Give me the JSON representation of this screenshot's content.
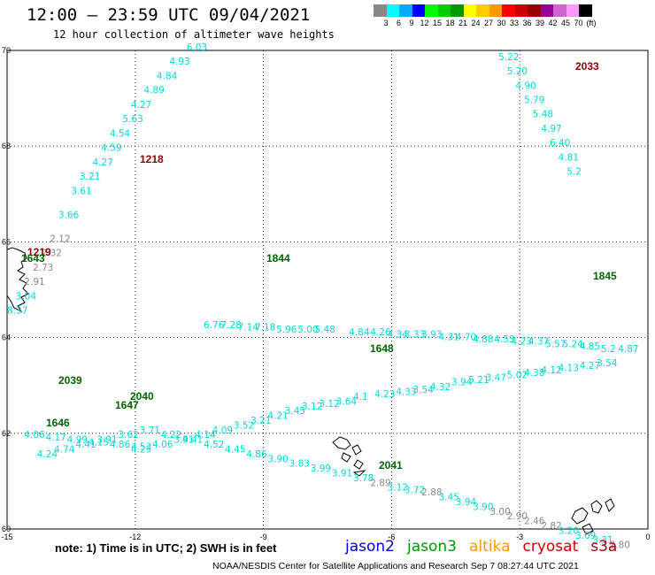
{
  "header": {
    "title": "12:00 – 23:59 UTC 09/04/2021",
    "subtitle": "12 hour collection of altimeter wave heights"
  },
  "color_scale": {
    "swatches": [
      "#888888",
      "#00ffff",
      "#00aaff",
      "#0000ff",
      "#00ff00",
      "#00cc00",
      "#009900",
      "#ffff00",
      "#ffcc00",
      "#ff9900",
      "#ff0000",
      "#cc0000",
      "#990000",
      "#990099",
      "#cc66cc",
      "#ff99ff",
      "#000000"
    ],
    "labels": [
      "3",
      "6",
      "9",
      "12",
      "15",
      "18",
      "21",
      "24",
      "27",
      "30",
      "33",
      "36",
      "39",
      "42",
      "45",
      "70",
      "(ft)"
    ]
  },
  "axes": {
    "lon_ticks": [
      "-15",
      "-12",
      "-9",
      "-6",
      "-3",
      "0"
    ],
    "lat_ticks": [
      "70",
      "68",
      "66",
      "64",
      "62",
      "60"
    ]
  },
  "tracks": [
    {
      "color": "#00d8d8",
      "points": [
        [
          -10.8,
          70.0,
          "6.03"
        ],
        [
          -11.2,
          69.7,
          "4.93"
        ],
        [
          -11.5,
          69.4,
          "4.84"
        ],
        [
          -11.8,
          69.1,
          "4.89"
        ],
        [
          -12.1,
          68.8,
          "4.27"
        ],
        [
          -12.3,
          68.5,
          "5.63"
        ],
        [
          -12.6,
          68.2,
          "4.54"
        ],
        [
          -12.8,
          67.9,
          "4.59"
        ],
        [
          -13.0,
          67.6,
          "4.27"
        ],
        [
          -13.3,
          67.3,
          "3.21"
        ],
        [
          -13.5,
          67.0,
          "3.61"
        ],
        [
          -13.8,
          66.5,
          "3.66"
        ]
      ]
    },
    {
      "color": "#888888",
      "points": [
        [
          -14.0,
          66.0,
          "2.12"
        ],
        [
          -14.2,
          65.7,
          "2.32"
        ],
        [
          -14.4,
          65.4,
          "2.73"
        ],
        [
          -14.6,
          65.1,
          "2.91"
        ]
      ]
    },
    {
      "color": "#00d8d8",
      "points": [
        [
          -14.8,
          64.8,
          "3.04"
        ],
        [
          -15.0,
          64.5,
          "8.37"
        ]
      ]
    },
    {
      "color": "#00d8d8",
      "points": [
        [
          -10.4,
          64.2,
          "6.76"
        ],
        [
          -10.0,
          64.2,
          "7.28"
        ],
        [
          -9.6,
          64.15,
          "7.14"
        ],
        [
          -9.2,
          64.15,
          "7.18"
        ],
        [
          -8.7,
          64.1,
          "5.96"
        ],
        [
          -8.2,
          64.1,
          "5.00"
        ],
        [
          -7.8,
          64.1,
          "5.48"
        ],
        [
          -7.0,
          64.05,
          "4.84"
        ],
        [
          -6.5,
          64.05,
          "4.26"
        ],
        [
          -6.1,
          64.0,
          "4.34"
        ],
        [
          -5.7,
          64.0,
          "3.33"
        ],
        [
          -5.3,
          64.0,
          "3.93"
        ],
        [
          -4.9,
          63.95,
          "4.31"
        ],
        [
          -4.5,
          63.95,
          "4.70"
        ],
        [
          -4.1,
          63.9,
          "4.88"
        ],
        [
          -3.6,
          63.9,
          "4.53"
        ],
        [
          -3.2,
          63.85,
          "4.23"
        ],
        [
          -2.8,
          63.85,
          "4.37"
        ],
        [
          -2.4,
          63.8,
          "5.57"
        ],
        [
          -2.0,
          63.8,
          "5.24"
        ],
        [
          -1.6,
          63.75,
          "4.85"
        ],
        [
          -1.1,
          63.7,
          "5.2"
        ],
        [
          -0.7,
          63.7,
          "4.87"
        ]
      ]
    },
    {
      "color": "#00d8d8",
      "points": [
        [
          -12.1,
          61.6,
          "4.25"
        ],
        [
          -11.6,
          61.7,
          "4.06"
        ],
        [
          -11.1,
          61.8,
          "3.91"
        ],
        [
          -10.6,
          61.9,
          "4.14"
        ],
        [
          -10.2,
          62.0,
          "4.09"
        ],
        [
          -9.7,
          62.1,
          "3.52"
        ],
        [
          -9.3,
          62.2,
          "3.21"
        ],
        [
          -8.9,
          62.3,
          "4.21"
        ],
        [
          -8.5,
          62.4,
          "3.45"
        ],
        [
          -8.1,
          62.5,
          "3.12"
        ],
        [
          -7.7,
          62.55,
          "3.12"
        ],
        [
          -7.3,
          62.6,
          "3.64"
        ],
        [
          -6.9,
          62.7,
          "4.1"
        ],
        [
          -6.4,
          62.75,
          "4.23"
        ],
        [
          -5.9,
          62.8,
          "4.33"
        ],
        [
          -5.5,
          62.85,
          "3.54"
        ],
        [
          -5.1,
          62.9,
          "4.32"
        ],
        [
          -4.6,
          63.0,
          "3.94"
        ],
        [
          -4.2,
          63.05,
          "5.21"
        ],
        [
          -3.8,
          63.1,
          "3.47"
        ],
        [
          -3.3,
          63.15,
          "5.02"
        ],
        [
          -2.9,
          63.2,
          "4.38"
        ],
        [
          -2.5,
          63.25,
          "4.12"
        ],
        [
          -2.1,
          63.3,
          "4.13"
        ],
        [
          -1.6,
          63.35,
          "4.27"
        ],
        [
          -1.2,
          63.4,
          "3.54"
        ]
      ]
    },
    {
      "color": "#00d8d8",
      "points": [
        [
          -14.3,
          61.5,
          "4.24"
        ],
        [
          -13.9,
          61.6,
          "4.74"
        ],
        [
          -13.4,
          61.7,
          "4.41"
        ],
        [
          -12.9,
          61.8,
          "3.91"
        ],
        [
          -12.4,
          61.9,
          "3.62"
        ],
        [
          -11.9,
          62.0,
          "3.71"
        ],
        [
          -11.4,
          61.9,
          "4.22"
        ],
        [
          -10.9,
          61.8,
          "4.41"
        ],
        [
          -10.4,
          61.7,
          "4.52"
        ],
        [
          -9.9,
          61.6,
          "4.45"
        ],
        [
          -9.4,
          61.5,
          "4.86"
        ],
        [
          -8.9,
          61.4,
          "3.90"
        ],
        [
          -8.4,
          61.3,
          "3.83"
        ],
        [
          -7.9,
          61.2,
          "3.99"
        ],
        [
          -7.4,
          61.1,
          "3.91"
        ],
        [
          -6.9,
          61.0,
          "3.78"
        ]
      ]
    },
    {
      "color": "#888888",
      "points": [
        [
          -6.5,
          60.9,
          "2.89"
        ]
      ]
    },
    {
      "color": "#00d8d8",
      "points": [
        [
          -6.1,
          60.8,
          "3.12"
        ],
        [
          -5.7,
          60.75,
          "3.72"
        ]
      ]
    },
    {
      "color": "#888888",
      "points": [
        [
          -5.3,
          60.7,
          "2.88"
        ]
      ]
    },
    {
      "color": "#00d8d8",
      "points": [
        [
          -4.9,
          60.6,
          "3.45"
        ],
        [
          -4.5,
          60.5,
          "3.94"
        ],
        [
          -4.1,
          60.4,
          "3.90"
        ]
      ]
    },
    {
      "color": "#888888",
      "points": [
        [
          -3.7,
          60.3,
          "3.00"
        ],
        [
          -3.3,
          60.2,
          "2.90"
        ],
        [
          -2.9,
          60.1,
          "2.46"
        ],
        [
          -2.5,
          60.0,
          "2.82"
        ]
      ]
    },
    {
      "color": "#00d8d8",
      "points": [
        [
          -2.1,
          59.9,
          "3.20"
        ],
        [
          -1.7,
          59.8,
          "3.09"
        ],
        [
          -1.3,
          59.7,
          "3.31"
        ]
      ]
    },
    {
      "color": "#888888",
      "points": [
        [
          -0.9,
          59.6,
          "2.80"
        ]
      ]
    },
    {
      "color": "#00d8d8",
      "points": [
        [
          -14.6,
          61.9,
          "4.06"
        ],
        [
          -14.1,
          61.85,
          "4.17"
        ],
        [
          -13.6,
          61.8,
          "4.99"
        ],
        [
          -13.1,
          61.75,
          "4.15"
        ],
        [
          -12.6,
          61.7,
          "4.86"
        ],
        [
          -12.1,
          61.65,
          "4.53"
        ]
      ]
    },
    {
      "color": "#00d8d8",
      "points": [
        [
          -3.5,
          69.8,
          "5.22"
        ],
        [
          -3.3,
          69.5,
          "5.20"
        ],
        [
          -3.1,
          69.2,
          "4.90"
        ],
        [
          -2.9,
          68.9,
          "5.79"
        ],
        [
          -2.7,
          68.6,
          "5.48"
        ],
        [
          -2.5,
          68.3,
          "4.97"
        ],
        [
          -2.3,
          68.0,
          "6.40"
        ],
        [
          -2.1,
          67.7,
          "4.81"
        ],
        [
          -1.9,
          67.4,
          "5.2"
        ]
      ]
    }
  ],
  "time_marks": [
    {
      "text": "1218",
      "color": "#8b0000"
    },
    {
      "text": "1219",
      "color": "#8b0000"
    },
    {
      "text": "1643",
      "color": "#006400"
    },
    {
      "text": "1844",
      "color": "#006400"
    },
    {
      "text": "1845",
      "color": "#006400"
    },
    {
      "text": "1648",
      "color": "#006400"
    },
    {
      "text": "2039",
      "color": "#006400"
    },
    {
      "text": "2040",
      "color": "#006400"
    },
    {
      "text": "1647",
      "color": "#006400"
    },
    {
      "text": "1646",
      "color": "#006400"
    },
    {
      "text": "2041",
      "color": "#006400"
    },
    {
      "text": "2033",
      "color": "#8b0000"
    }
  ],
  "footer": {
    "note": "note:  1) Time is in UTC;  2) SWH is in feet",
    "legend": [
      {
        "text": "jason2",
        "color": "#0000dd"
      },
      {
        "text": "jason3",
        "color": "#009900"
      },
      {
        "text": "altika",
        "color": "#ff9900"
      },
      {
        "text": "cryosat",
        "color": "#cc0000"
      },
      {
        "text": "s3a",
        "color": "#990000"
      }
    ],
    "credit": "NOAA/NESDIS Center for Satellite Applications and Research    Sep  7 08:27:44 UTC 2021"
  }
}
